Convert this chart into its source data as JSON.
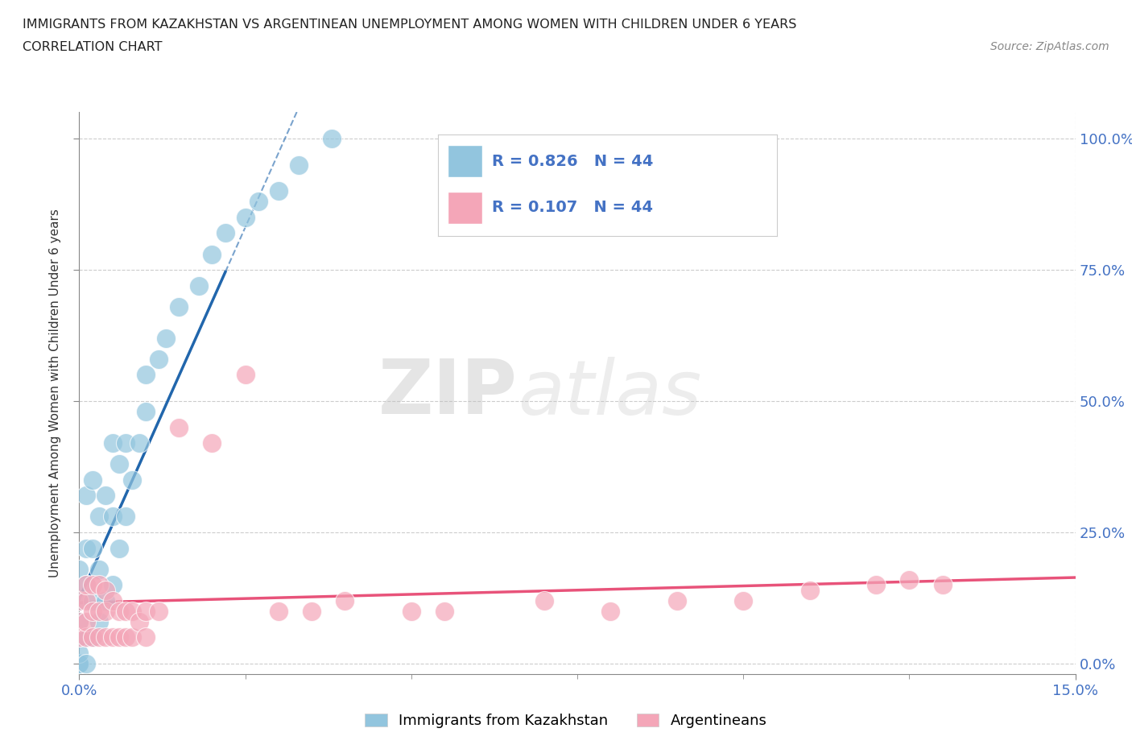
{
  "title_line1": "IMMIGRANTS FROM KAZAKHSTAN VS ARGENTINEAN UNEMPLOYMENT AMONG WOMEN WITH CHILDREN UNDER 6 YEARS",
  "title_line2": "CORRELATION CHART",
  "source_text": "Source: ZipAtlas.com",
  "ylabel": "Unemployment Among Women with Children Under 6 years",
  "ytick_labels": [
    "0.0%",
    "25.0%",
    "50.0%",
    "75.0%",
    "100.0%"
  ],
  "ytick_values": [
    0.0,
    0.25,
    0.5,
    0.75,
    1.0
  ],
  "legend_r1": "R = 0.826   N = 44",
  "legend_r2": "R = 0.107   N = 44",
  "legend_label1": "Immigrants from Kazakhstan",
  "legend_label2": "Argentineans",
  "color_blue": "#92c5de",
  "color_pink": "#f4a6b8",
  "color_blue_line": "#2166ac",
  "color_pink_line": "#e8537a",
  "color_blue_text": "#4472c4",
  "watermark_zip": "ZIP",
  "watermark_atlas": "atlas",
  "xlim": [
    0.0,
    0.15
  ],
  "ylim": [
    -0.02,
    1.05
  ],
  "xtick_positions": [
    0.0,
    0.15
  ],
  "xtick_labels": [
    "0.0%",
    "15.0%"
  ],
  "kaz_x": [
    0.0,
    0.0,
    0.0,
    0.0,
    0.0,
    0.0,
    0.0,
    0.0,
    0.001,
    0.001,
    0.001,
    0.001,
    0.001,
    0.002,
    0.002,
    0.002,
    0.002,
    0.003,
    0.003,
    0.003,
    0.004,
    0.004,
    0.005,
    0.005,
    0.005,
    0.006,
    0.006,
    0.007,
    0.007,
    0.008,
    0.009,
    0.01,
    0.01,
    0.012,
    0.013,
    0.015,
    0.018,
    0.02,
    0.022,
    0.025,
    0.027,
    0.03,
    0.033,
    0.038
  ],
  "kaz_y": [
    0.0,
    0.0,
    0.0,
    0.02,
    0.05,
    0.08,
    0.12,
    0.18,
    0.0,
    0.05,
    0.15,
    0.22,
    0.32,
    0.05,
    0.12,
    0.22,
    0.35,
    0.08,
    0.18,
    0.28,
    0.12,
    0.32,
    0.15,
    0.28,
    0.42,
    0.22,
    0.38,
    0.28,
    0.42,
    0.35,
    0.42,
    0.48,
    0.55,
    0.58,
    0.62,
    0.68,
    0.72,
    0.78,
    0.82,
    0.85,
    0.88,
    0.9,
    0.95,
    1.0
  ],
  "arg_x": [
    0.0,
    0.0,
    0.0,
    0.001,
    0.001,
    0.001,
    0.001,
    0.002,
    0.002,
    0.002,
    0.003,
    0.003,
    0.003,
    0.004,
    0.004,
    0.004,
    0.005,
    0.005,
    0.006,
    0.006,
    0.007,
    0.007,
    0.008,
    0.008,
    0.009,
    0.01,
    0.01,
    0.012,
    0.015,
    0.02,
    0.025,
    0.03,
    0.035,
    0.04,
    0.05,
    0.055,
    0.07,
    0.08,
    0.09,
    0.1,
    0.11,
    0.12,
    0.125,
    0.13
  ],
  "arg_y": [
    0.05,
    0.08,
    0.12,
    0.05,
    0.08,
    0.12,
    0.15,
    0.05,
    0.1,
    0.15,
    0.05,
    0.1,
    0.15,
    0.05,
    0.1,
    0.14,
    0.05,
    0.12,
    0.05,
    0.1,
    0.05,
    0.1,
    0.05,
    0.1,
    0.08,
    0.05,
    0.1,
    0.1,
    0.45,
    0.42,
    0.55,
    0.1,
    0.1,
    0.12,
    0.1,
    0.1,
    0.12,
    0.1,
    0.12,
    0.12,
    0.14,
    0.15,
    0.16,
    0.15
  ]
}
